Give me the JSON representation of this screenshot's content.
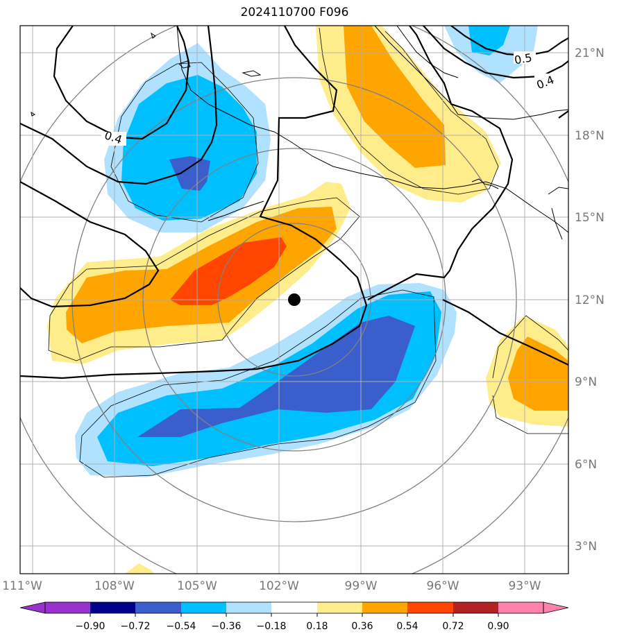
{
  "title": "2024110700 F096",
  "map": {
    "lon_labels": [
      "111°W",
      "108°W",
      "105°W",
      "102°W",
      "99°W",
      "96°W",
      "93°W"
    ],
    "lat_labels": [
      "21°N",
      "18°N",
      "15°N",
      "12°N",
      "9°N",
      "6°N",
      "3°N"
    ],
    "center_marker": {
      "lon": -101.5,
      "lat": 12.0
    },
    "contour_labels": [
      "0.4",
      "0.5",
      "0.4"
    ]
  },
  "colorbar": {
    "ticks": [
      "−0.90",
      "−0.72",
      "−0.54",
      "−0.36",
      "−0.18",
      "0.18",
      "0.36",
      "0.54",
      "0.72",
      "0.90"
    ],
    "colors": [
      "#9932cc",
      "#00008b",
      "#3a5fcd",
      "#00bfff",
      "#b0e2ff",
      "#ffffff",
      "#ffec8b",
      "#ffa500",
      "#ff4500",
      "#b22222",
      "#ff82ab"
    ]
  },
  "colors": {
    "neg_light": "#b0e2ff",
    "neg_mid": "#00bfff",
    "neg_dark": "#3a5fcd",
    "pos_light": "#ffec8b",
    "pos_mid": "#ffa500",
    "pos_dark": "#ff4500"
  }
}
